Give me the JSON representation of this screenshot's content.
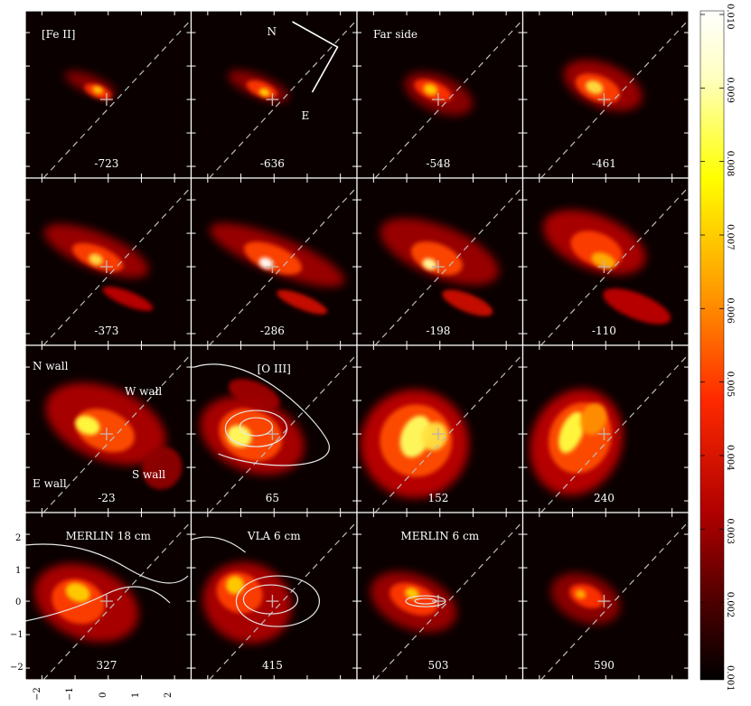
{
  "figure": {
    "panels": [
      {
        "velocity": "-723",
        "label": "[Fe II]",
        "label_pos": "top-left",
        "compass": false
      },
      {
        "velocity": "-636",
        "label": "",
        "compass": true
      },
      {
        "velocity": "-548",
        "label": "Far side",
        "label_pos": "top-left"
      },
      {
        "velocity": "-461",
        "label": ""
      },
      {
        "velocity": "-373",
        "label": ""
      },
      {
        "velocity": "-286",
        "label": ""
      },
      {
        "velocity": "-198",
        "label": ""
      },
      {
        "velocity": "-110",
        "label": ""
      },
      {
        "velocity": "-23",
        "label": "",
        "walls": true
      },
      {
        "velocity": "65",
        "label": "[O III]",
        "label_pos": "top-center"
      },
      {
        "velocity": "152",
        "label": ""
      },
      {
        "velocity": "240",
        "label": ""
      },
      {
        "velocity": "327",
        "label": "MERLIN 18 cm",
        "label_pos": "top-center"
      },
      {
        "velocity": "415",
        "label": "VLA 6 cm",
        "label_pos": "top-center"
      },
      {
        "velocity": "503",
        "label": "MERLIN 6 cm",
        "label_pos": "top-center"
      },
      {
        "velocity": "590",
        "label": ""
      }
    ],
    "walls": {
      "north": "N wall",
      "west": "W wall",
      "east": "E wall",
      "south": "S wall"
    },
    "compass": {
      "north": "N",
      "east": "E"
    },
    "y_ticks": [
      "2",
      "1",
      "0",
      "−1",
      "−2"
    ],
    "x_ticks": [
      "−2",
      "−1",
      "0",
      "1",
      "2"
    ],
    "colorbar": {
      "ticks": [
        "0.010",
        "0.009",
        "0.008",
        "0.007",
        "0.006",
        "0.005",
        "0.004",
        "0.003",
        "0.002",
        "0.001"
      ],
      "colormap": "hot",
      "colors": [
        "#ffffff",
        "#ffff60",
        "#ffd000",
        "#ff8000",
        "#e01000",
        "#900000",
        "#300000",
        "#000000"
      ]
    }
  }
}
